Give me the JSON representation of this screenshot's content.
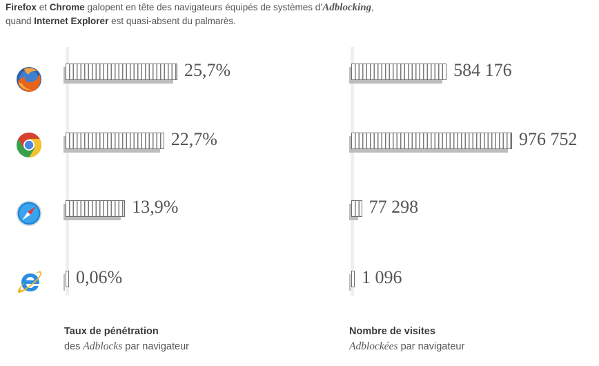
{
  "intro": {
    "line1_b1": "Firefox",
    "line1_t1": " et ",
    "line1_b2": "Chrome",
    "line1_t2": " galopent en tête des navigateurs équipés de systèmes d’",
    "line1_it": "Adblocking",
    "line1_t3": ",",
    "line2_t1": "quand ",
    "line2_b1": "Internet Explorer",
    "line2_t2": " est quasi-absent du palmarès."
  },
  "chart_data": [
    {
      "type": "bar",
      "orientation": "horizontal",
      "categories": [
        "Firefox",
        "Chrome",
        "Safari",
        "Internet Explorer"
      ],
      "values": [
        25.7,
        22.7,
        13.9,
        0.06
      ],
      "value_labels": [
        "25,7%",
        "22,7%",
        "13,9%",
        "0,06%"
      ],
      "unit": "%",
      "title": "Taux de pénétration",
      "subtitle_prefix": "des ",
      "subtitle_it": "Adblocks",
      "subtitle_suffix": " par navigateur"
    },
    {
      "type": "bar",
      "orientation": "horizontal",
      "categories": [
        "Firefox",
        "Chrome",
        "Safari",
        "Internet Explorer"
      ],
      "values": [
        584176,
        976752,
        77298,
        1096
      ],
      "value_labels": [
        "584 176",
        "976 752",
        "77 298",
        "1 096"
      ],
      "title": "Nombre de visites",
      "subtitle_prefix": "",
      "subtitle_it": "Adblockées",
      "subtitle_suffix": " par navigateur"
    }
  ],
  "icons": [
    "firefox-icon",
    "chrome-icon",
    "safari-icon",
    "internet-explorer-icon"
  ],
  "colors": {
    "bar_stroke": "#6f6f6f",
    "bar_shadow": "#bdbdbd",
    "text": "#555555"
  }
}
